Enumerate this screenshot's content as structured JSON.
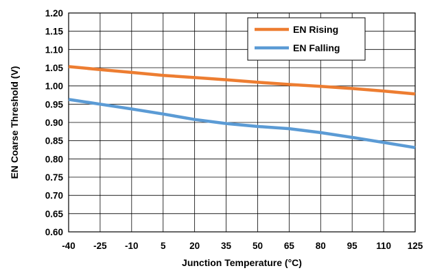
{
  "chart_data": {
    "type": "line",
    "title": "",
    "xlabel": "Junction Temperature (°C)",
    "ylabel": "EN Coarse  Threshold (V)",
    "x": [
      -40,
      -25,
      -10,
      5,
      20,
      35,
      50,
      65,
      80,
      95,
      110,
      125
    ],
    "x_tick_labels": [
      "-40",
      "-25",
      "-10",
      "5",
      "20",
      "35",
      "50",
      "65",
      "80",
      "95",
      "110",
      "125"
    ],
    "xlim": [
      -40,
      125
    ],
    "ylim": [
      0.6,
      1.2
    ],
    "y_ticks": [
      0.6,
      0.65,
      0.7,
      0.75,
      0.8,
      0.85,
      0.9,
      0.95,
      1.0,
      1.05,
      1.1,
      1.15,
      1.2
    ],
    "y_tick_labels": [
      "0.60",
      "0.65",
      "0.70",
      "0.75",
      "0.80",
      "0.85",
      "0.90",
      "0.95",
      "1.00",
      "1.05",
      "1.10",
      "1.15",
      "1.20"
    ],
    "grid": true,
    "legend_position": "top-right",
    "series": [
      {
        "name": "EN Rising",
        "color": "#ED7D31",
        "values": [
          1.053,
          1.045,
          1.037,
          1.029,
          1.023,
          1.017,
          1.01,
          1.004,
          0.999,
          0.993,
          0.986,
          0.978
        ]
      },
      {
        "name": "EN Falling",
        "color": "#5B9BD5",
        "values": [
          0.963,
          0.95,
          0.937,
          0.923,
          0.908,
          0.897,
          0.889,
          0.883,
          0.872,
          0.859,
          0.845,
          0.831
        ]
      }
    ]
  }
}
